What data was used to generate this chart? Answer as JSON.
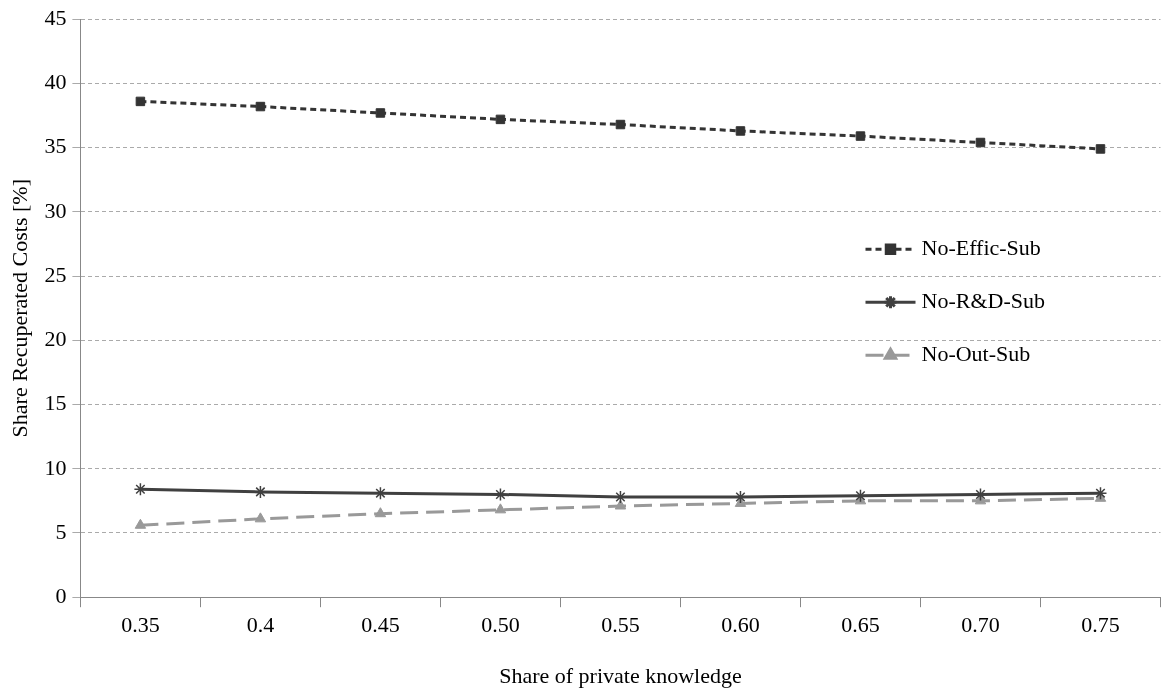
{
  "chart_data": {
    "type": "line",
    "xlabel": "Share of private knowledge",
    "ylabel": "Share Recuperated Costs [%]",
    "categories": [
      "0.35",
      "0.4",
      "0.45",
      "0.50",
      "0.55",
      "0.60",
      "0.65",
      "0.70",
      "0.75"
    ],
    "series": [
      {
        "name": "No-Effic-Sub",
        "color": "#333333",
        "marker": "square",
        "line_style": "dotted",
        "values": [
          38.6,
          38.2,
          37.7,
          37.2,
          36.8,
          36.3,
          35.9,
          35.4,
          34.9
        ]
      },
      {
        "name": "No-R&D-Sub",
        "color": "#404040",
        "marker": "cross",
        "line_style": "solid",
        "values": [
          8.4,
          8.2,
          8.1,
          8.0,
          7.8,
          7.8,
          7.9,
          8.0,
          8.1
        ]
      },
      {
        "name": "No-Out-Sub",
        "color": "#999999",
        "marker": "triangle",
        "line_style": "dashed",
        "values": [
          5.6,
          6.1,
          6.5,
          6.8,
          7.1,
          7.3,
          7.5,
          7.5,
          7.7
        ]
      }
    ],
    "ylim": [
      0,
      45
    ],
    "yticks": [
      0,
      5,
      10,
      15,
      20,
      25,
      30,
      35,
      40,
      45
    ],
    "grid": "y",
    "legend": "right"
  }
}
